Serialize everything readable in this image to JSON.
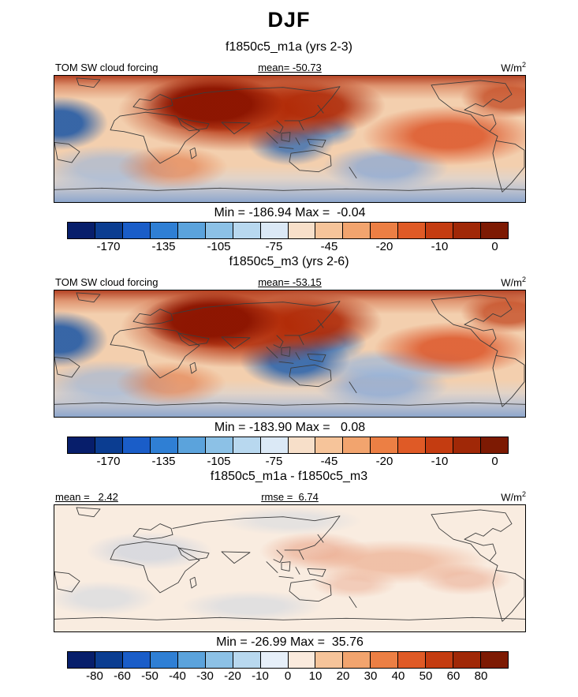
{
  "title": "DJF",
  "panels": [
    {
      "subtitle": "f1850c5_m1a (yrs 2-3)",
      "field_label": "TOM SW cloud forcing",
      "mean_label": "mean= -50.73",
      "units_base": "W/m",
      "units_exp": "2",
      "minmax": "Min = -186.94 Max =  -0.04",
      "colorbar": {
        "tick_mode": "alt",
        "ticks": [
          "-170",
          "-135",
          "-105",
          "-75",
          "-45",
          "-20",
          "-10",
          "0"
        ],
        "colors": [
          "#071e6b",
          "#0b3d91",
          "#1a5dc8",
          "#2f7fd4",
          "#5ba3dc",
          "#8cc1e6",
          "#b8d8ef",
          "#dbe9f6",
          "#f7dfc9",
          "#f6c49a",
          "#f2a46e",
          "#ec7f44",
          "#df5a26",
          "#c43c11",
          "#a02807",
          "#7d1a03"
        ]
      }
    },
    {
      "subtitle": "f1850c5_m3 (yrs 2-6)",
      "field_label": "TOM SW cloud forcing",
      "mean_label": "mean= -53.15",
      "units_base": "W/m",
      "units_exp": "2",
      "minmax": "Min = -183.90 Max =   0.08",
      "colorbar": {
        "tick_mode": "alt",
        "ticks": [
          "-170",
          "-135",
          "-105",
          "-75",
          "-45",
          "-20",
          "-10",
          "0"
        ],
        "colors": [
          "#071e6b",
          "#0b3d91",
          "#1a5dc8",
          "#2f7fd4",
          "#5ba3dc",
          "#8cc1e6",
          "#b8d8ef",
          "#dbe9f6",
          "#f7dfc9",
          "#f6c49a",
          "#f2a46e",
          "#ec7f44",
          "#df5a26",
          "#c43c11",
          "#a02807",
          "#7d1a03"
        ]
      }
    },
    {
      "subtitle": "f1850c5_m1a - f1850c5_m3",
      "mean_label": "mean =   2.42",
      "rmse_label": "rmse =  6.74",
      "units_base": "W/m",
      "units_exp": "2",
      "minmax": "Min = -26.99 Max =  35.76",
      "colorbar": {
        "tick_mode": "boundary",
        "ticks": [
          "-80",
          "-60",
          "-50",
          "-40",
          "-30",
          "-20",
          "-10",
          "0",
          "10",
          "20",
          "30",
          "40",
          "50",
          "60",
          "80"
        ],
        "colors": [
          "#071e6b",
          "#0b3d91",
          "#1a5dc8",
          "#2f7fd4",
          "#5ba3dc",
          "#8cc1e6",
          "#b8d8ef",
          "#e6eff9",
          "#faeadd",
          "#f6c49a",
          "#f2a46e",
          "#ec7f44",
          "#df5a26",
          "#c43c11",
          "#a02807",
          "#7d1a03"
        ]
      }
    }
  ],
  "chart_data": [
    {
      "type": "heatmap",
      "season": "DJF",
      "title": "f1850c5_m1a (yrs 2-3)",
      "variable": "TOM SW cloud forcing",
      "units": "W/m^2",
      "mean": -50.73,
      "min": -186.94,
      "max": -0.04,
      "colorbar_ticks": [
        -170,
        -135,
        -105,
        -75,
        -45,
        -20,
        -10,
        0
      ],
      "legend_position": "bottom"
    },
    {
      "type": "heatmap",
      "season": "DJF",
      "title": "f1850c5_m3 (yrs 2-6)",
      "variable": "TOM SW cloud forcing",
      "units": "W/m^2",
      "mean": -53.15,
      "min": -183.9,
      "max": 0.08,
      "colorbar_ticks": [
        -170,
        -135,
        -105,
        -75,
        -45,
        -20,
        -10,
        0
      ],
      "legend_position": "bottom"
    },
    {
      "type": "heatmap",
      "season": "DJF",
      "title": "f1850c5_m1a - f1850c5_m3",
      "variable": "TOM SW cloud forcing difference",
      "units": "W/m^2",
      "mean": 2.42,
      "rmse": 6.74,
      "min": -26.99,
      "max": 35.76,
      "colorbar_ticks": [
        -80,
        -60,
        -50,
        -40,
        -30,
        -20,
        -10,
        0,
        10,
        20,
        30,
        40,
        50,
        60,
        80
      ],
      "legend_position": "bottom"
    }
  ]
}
